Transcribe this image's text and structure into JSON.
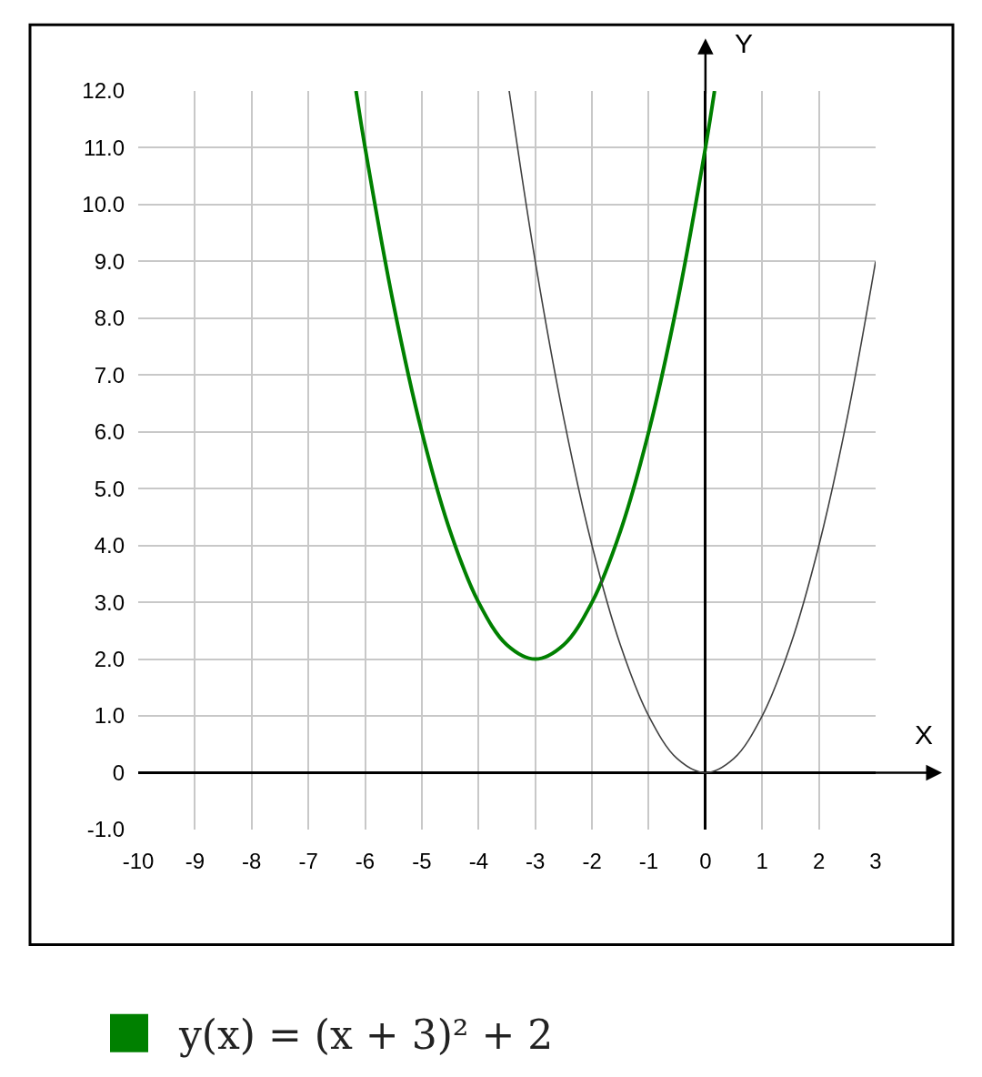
{
  "chart_data": {
    "type": "line",
    "xlabel": "X",
    "ylabel": "Y",
    "xlim": [
      -10,
      3
    ],
    "ylim": [
      -1,
      12
    ],
    "xticks": [
      -10,
      -9,
      -8,
      -7,
      -6,
      -5,
      -4,
      -3,
      -2,
      -1,
      0,
      1,
      2,
      3
    ],
    "yticks": [
      {
        "value": -1,
        "label": "-1.0"
      },
      0,
      {
        "value": 1,
        "label": "1.0"
      },
      {
        "value": 2,
        "label": "2.0"
      },
      {
        "value": 3,
        "label": "3.0"
      },
      {
        "value": 4,
        "label": "4.0"
      },
      {
        "value": 5,
        "label": "5.0"
      },
      {
        "value": 6,
        "label": "6.0"
      },
      {
        "value": 7,
        "label": "7.0"
      },
      {
        "value": 8,
        "label": "8.0"
      },
      {
        "value": 9,
        "label": "9.0"
      },
      {
        "value": 10,
        "label": "10.0"
      },
      {
        "value": 11,
        "label": "11.0"
      },
      {
        "value": 12,
        "label": "12.0"
      }
    ],
    "grid": true,
    "legend": "bottom",
    "series": [
      {
        "name": "y(x) = (x + 3)² + 2",
        "color": "#008000",
        "x": [
          -6.16,
          -6,
          -5.5,
          -5,
          -4.5,
          -4,
          -3.5,
          -3,
          -2.5,
          -2,
          -1.5,
          -1,
          -0.5,
          0,
          0.16
        ],
        "values": [
          12,
          11,
          8.25,
          6,
          4.25,
          3,
          2.25,
          2,
          2.25,
          3,
          4.25,
          6,
          8.25,
          11,
          12
        ]
      },
      {
        "color": "#404040",
        "x": [
          -3.46,
          -3,
          -2.5,
          -2,
          -1.5,
          -1,
          -0.5,
          0,
          0.5,
          1,
          1.5,
          2,
          2.5,
          3
        ],
        "values": [
          12,
          9,
          6.25,
          4,
          2.25,
          1,
          0.25,
          0,
          0.25,
          1,
          2.25,
          4,
          6.25,
          9
        ]
      }
    ]
  }
}
